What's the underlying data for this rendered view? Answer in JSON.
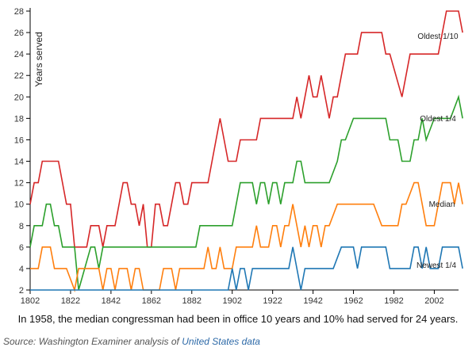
{
  "chart_data": {
    "type": "line",
    "title": "",
    "xlabel": "",
    "ylabel": "Years served",
    "xlim": [
      1802,
      2014
    ],
    "ylim": [
      2,
      28
    ],
    "x_ticks": [
      1802,
      1822,
      1842,
      1862,
      1882,
      1902,
      1922,
      1942,
      1962,
      1982,
      2002
    ],
    "y_ticks": [
      2,
      4,
      6,
      8,
      10,
      12,
      14,
      16,
      18,
      20,
      22,
      24,
      26,
      28
    ],
    "grid": false,
    "series": [
      {
        "name": "Oldest 1/10",
        "label": "Oldest 1/10",
        "color": "#d62728",
        "points": [
          [
            1802,
            10
          ],
          [
            1804,
            12
          ],
          [
            1806,
            12
          ],
          [
            1808,
            14
          ],
          [
            1816,
            14
          ],
          [
            1820,
            10
          ],
          [
            1822,
            10
          ],
          [
            1824,
            6
          ],
          [
            1830,
            6
          ],
          [
            1832,
            8
          ],
          [
            1836,
            8
          ],
          [
            1838,
            6
          ],
          [
            1840,
            8
          ],
          [
            1844,
            8
          ],
          [
            1848,
            12
          ],
          [
            1850,
            12
          ],
          [
            1852,
            10
          ],
          [
            1854,
            10
          ],
          [
            1856,
            8
          ],
          [
            1858,
            10
          ],
          [
            1860,
            6
          ],
          [
            1862,
            6
          ],
          [
            1864,
            10
          ],
          [
            1866,
            10
          ],
          [
            1868,
            8
          ],
          [
            1870,
            8
          ],
          [
            1872,
            10
          ],
          [
            1874,
            12
          ],
          [
            1876,
            12
          ],
          [
            1878,
            10
          ],
          [
            1880,
            10
          ],
          [
            1882,
            12
          ],
          [
            1890,
            12
          ],
          [
            1896,
            18
          ],
          [
            1900,
            14
          ],
          [
            1904,
            14
          ],
          [
            1906,
            16
          ],
          [
            1914,
            16
          ],
          [
            1916,
            18
          ],
          [
            1932,
            18
          ],
          [
            1934,
            20
          ],
          [
            1936,
            18
          ],
          [
            1938,
            20
          ],
          [
            1940,
            22
          ],
          [
            1942,
            20
          ],
          [
            1944,
            20
          ],
          [
            1946,
            22
          ],
          [
            1950,
            18
          ],
          [
            1952,
            20
          ],
          [
            1954,
            20
          ],
          [
            1958,
            24
          ],
          [
            1964,
            24
          ],
          [
            1966,
            26
          ],
          [
            1976,
            26
          ],
          [
            1978,
            24
          ],
          [
            1980,
            24
          ],
          [
            1986,
            20
          ],
          [
            1990,
            24
          ],
          [
            2004,
            24
          ],
          [
            2008,
            28
          ],
          [
            2014,
            28
          ],
          [
            2016,
            26
          ]
        ]
      },
      {
        "name": "Oldest 1/4",
        "label": "Oldest 1/4",
        "color": "#2ca02c",
        "points": [
          [
            1802,
            6
          ],
          [
            1804,
            8
          ],
          [
            1808,
            8
          ],
          [
            1810,
            10
          ],
          [
            1812,
            10
          ],
          [
            1814,
            8
          ],
          [
            1816,
            8
          ],
          [
            1818,
            6
          ],
          [
            1824,
            6
          ],
          [
            1826,
            2
          ],
          [
            1832,
            6
          ],
          [
            1834,
            6
          ],
          [
            1836,
            4
          ],
          [
            1838,
            6
          ],
          [
            1884,
            6
          ],
          [
            1886,
            8
          ],
          [
            1902,
            8
          ],
          [
            1904,
            10
          ],
          [
            1906,
            12
          ],
          [
            1912,
            12
          ],
          [
            1914,
            10
          ],
          [
            1916,
            12
          ],
          [
            1918,
            12
          ],
          [
            1920,
            10
          ],
          [
            1922,
            12
          ],
          [
            1924,
            12
          ],
          [
            1926,
            10
          ],
          [
            1928,
            12
          ],
          [
            1932,
            12
          ],
          [
            1934,
            14
          ],
          [
            1936,
            14
          ],
          [
            1938,
            12
          ],
          [
            1950,
            12
          ],
          [
            1954,
            14
          ],
          [
            1956,
            16
          ],
          [
            1958,
            16
          ],
          [
            1962,
            18
          ],
          [
            1978,
            18
          ],
          [
            1980,
            16
          ],
          [
            1984,
            16
          ],
          [
            1986,
            14
          ],
          [
            1990,
            14
          ],
          [
            1992,
            16
          ],
          [
            1994,
            16
          ],
          [
            1996,
            18
          ],
          [
            1998,
            16
          ],
          [
            2002,
            18
          ],
          [
            2010,
            18
          ],
          [
            2014,
            20
          ],
          [
            2016,
            18
          ]
        ]
      },
      {
        "name": "Median",
        "label": "Median",
        "color": "#ff7f0e",
        "points": [
          [
            1802,
            4
          ],
          [
            1806,
            4
          ],
          [
            1808,
            6
          ],
          [
            1812,
            6
          ],
          [
            1814,
            4
          ],
          [
            1820,
            4
          ],
          [
            1824,
            2
          ],
          [
            1826,
            4
          ],
          [
            1836,
            4
          ],
          [
            1838,
            2
          ],
          [
            1840,
            4
          ],
          [
            1842,
            4
          ],
          [
            1844,
            2
          ],
          [
            1846,
            4
          ],
          [
            1850,
            4
          ],
          [
            1852,
            2
          ],
          [
            1854,
            4
          ],
          [
            1856,
            4
          ],
          [
            1858,
            2
          ],
          [
            1866,
            2
          ],
          [
            1868,
            4
          ],
          [
            1872,
            4
          ],
          [
            1874,
            2
          ],
          [
            1876,
            4
          ],
          [
            1882,
            4
          ],
          [
            1888,
            4
          ],
          [
            1890,
            6
          ],
          [
            1892,
            4
          ],
          [
            1894,
            4
          ],
          [
            1896,
            6
          ],
          [
            1898,
            4
          ],
          [
            1902,
            4
          ],
          [
            1904,
            6
          ],
          [
            1912,
            6
          ],
          [
            1914,
            8
          ],
          [
            1916,
            6
          ],
          [
            1920,
            6
          ],
          [
            1922,
            8
          ],
          [
            1924,
            8
          ],
          [
            1926,
            6
          ],
          [
            1928,
            8
          ],
          [
            1930,
            8
          ],
          [
            1932,
            10
          ],
          [
            1934,
            8
          ],
          [
            1936,
            6
          ],
          [
            1938,
            8
          ],
          [
            1940,
            6
          ],
          [
            1942,
            8
          ],
          [
            1944,
            8
          ],
          [
            1946,
            6
          ],
          [
            1948,
            8
          ],
          [
            1950,
            8
          ],
          [
            1954,
            10
          ],
          [
            1972,
            10
          ],
          [
            1976,
            8
          ],
          [
            1984,
            8
          ],
          [
            1986,
            10
          ],
          [
            1988,
            10
          ],
          [
            1992,
            12
          ],
          [
            1994,
            12
          ],
          [
            1996,
            10
          ],
          [
            1998,
            8
          ],
          [
            2002,
            8
          ],
          [
            2004,
            10
          ],
          [
            2006,
            12
          ],
          [
            2010,
            12
          ],
          [
            2012,
            10
          ],
          [
            2014,
            12
          ],
          [
            2016,
            10
          ]
        ]
      },
      {
        "name": "Newest 1/4",
        "label": "Newest 1/4",
        "color": "#1f77b4",
        "points": [
          [
            1802,
            2
          ],
          [
            1900,
            2
          ],
          [
            1902,
            4
          ],
          [
            1904,
            2
          ],
          [
            1906,
            4
          ],
          [
            1908,
            4
          ],
          [
            1910,
            2
          ],
          [
            1912,
            4
          ],
          [
            1930,
            4
          ],
          [
            1932,
            6
          ],
          [
            1934,
            4
          ],
          [
            1936,
            2
          ],
          [
            1938,
            4
          ],
          [
            1952,
            4
          ],
          [
            1956,
            6
          ],
          [
            1962,
            6
          ],
          [
            1964,
            4
          ],
          [
            1966,
            6
          ],
          [
            1978,
            6
          ],
          [
            1980,
            4
          ],
          [
            1990,
            4
          ],
          [
            1992,
            6
          ],
          [
            1994,
            6
          ],
          [
            1996,
            4
          ],
          [
            1998,
            6
          ],
          [
            2000,
            4
          ],
          [
            2004,
            4
          ],
          [
            2006,
            6
          ],
          [
            2014,
            6
          ],
          [
            2016,
            4
          ]
        ]
      }
    ]
  },
  "caption": "In 1958, the median congressman had been in office 10 years and 10% had served for 24 years.",
  "source": {
    "prefix": "Source: Washington Examiner analysis of ",
    "link_text": "United States data"
  }
}
